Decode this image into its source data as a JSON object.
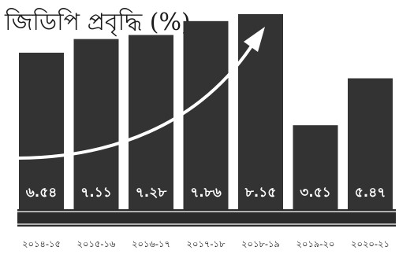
{
  "chart_data": {
    "type": "bar",
    "title": "জিডিপি প্রবৃদ্ধি (%)",
    "categories": [
      "২০১৪-১৫",
      "২০১৫-১৬",
      "২০১৬-১৭",
      "২০১৭-১৮",
      "২০১৮-১৯",
      "২০১৯-২০",
      "২০২০-২১"
    ],
    "values": [
      6.54,
      7.11,
      7.28,
      7.86,
      8.15,
      3.51,
      5.47
    ],
    "value_labels": [
      "৬.৫৪",
      "৭.১১",
      "৭.২৮",
      "৭.৮৬",
      "৮.১৫",
      "৩.৫১",
      "৫.৪৭"
    ],
    "ylim": [
      0,
      8.15
    ],
    "grid": false,
    "annotation": "upward trend arrow over 2014-15 to 2018-19",
    "colors": {
      "bar": "#333333",
      "arrow": "#ffffff",
      "text": "#1a1a1a",
      "band": "#2b2b2b"
    }
  }
}
